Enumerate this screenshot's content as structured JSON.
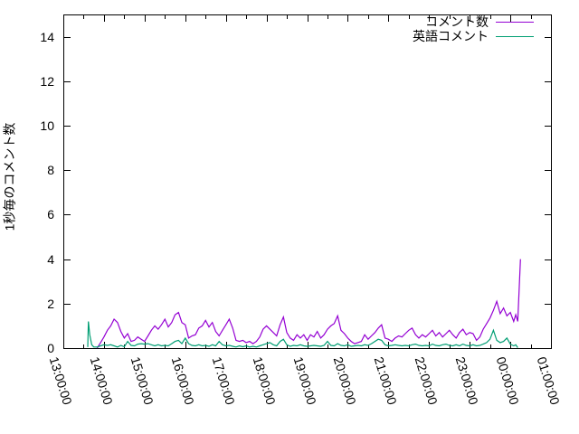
{
  "window": {
    "background": "#ffffff",
    "foreground": "#000000"
  },
  "chart_data": {
    "type": "line",
    "title": "",
    "xlabel": "",
    "ylabel": "1秒毎のコメント数",
    "grid": false,
    "legend_position": "top-right-inside",
    "ylim": [
      0,
      15
    ],
    "xlim_minutes_from_13_00": [
      0,
      720
    ],
    "yticks": [
      "0",
      "2",
      "4",
      "6",
      "8",
      "10",
      "12",
      "14"
    ],
    "ytick_values": [
      0,
      2,
      4,
      6,
      8,
      10,
      12,
      14
    ],
    "minor_xtick_interval_minutes": 30,
    "xticks": [
      {
        "minutes": 0,
        "label": "13:00:00"
      },
      {
        "minutes": 60,
        "label": "14:00:00"
      },
      {
        "minutes": 120,
        "label": "15:00:00"
      },
      {
        "minutes": 180,
        "label": "16:00:00"
      },
      {
        "minutes": 240,
        "label": "17:00:00"
      },
      {
        "minutes": 300,
        "label": "18:00:00"
      },
      {
        "minutes": 360,
        "label": "19:00:00"
      },
      {
        "minutes": 420,
        "label": "20:00:00"
      },
      {
        "minutes": 480,
        "label": "21:00:00"
      },
      {
        "minutes": 540,
        "label": "22:00:00"
      },
      {
        "minutes": 600,
        "label": "23:00:00"
      },
      {
        "minutes": 660,
        "label": "00:00:00"
      },
      {
        "minutes": 720,
        "label": "01:00:00"
      }
    ],
    "series": [
      {
        "name": "コメント数",
        "color": "#9400d3",
        "points": [
          [
            50,
            0
          ],
          [
            55,
            0.25
          ],
          [
            60,
            0.5
          ],
          [
            65,
            0.8
          ],
          [
            70,
            1.0
          ],
          [
            75,
            1.3
          ],
          [
            80,
            1.15
          ],
          [
            85,
            0.75
          ],
          [
            90,
            0.45
          ],
          [
            95,
            0.65
          ],
          [
            100,
            0.3
          ],
          [
            105,
            0.35
          ],
          [
            110,
            0.5
          ],
          [
            115,
            0.4
          ],
          [
            120,
            0.3
          ],
          [
            125,
            0.55
          ],
          [
            130,
            0.8
          ],
          [
            135,
            1.0
          ],
          [
            140,
            0.85
          ],
          [
            145,
            1.05
          ],
          [
            150,
            1.3
          ],
          [
            155,
            0.95
          ],
          [
            160,
            1.15
          ],
          [
            165,
            1.5
          ],
          [
            170,
            1.6
          ],
          [
            175,
            1.15
          ],
          [
            180,
            1.05
          ],
          [
            185,
            0.45
          ],
          [
            190,
            0.55
          ],
          [
            195,
            0.6
          ],
          [
            200,
            0.9
          ],
          [
            205,
            1.0
          ],
          [
            210,
            1.25
          ],
          [
            215,
            0.95
          ],
          [
            220,
            1.15
          ],
          [
            225,
            0.75
          ],
          [
            230,
            0.55
          ],
          [
            235,
            0.8
          ],
          [
            240,
            1.05
          ],
          [
            245,
            1.3
          ],
          [
            250,
            0.9
          ],
          [
            255,
            0.35
          ],
          [
            260,
            0.3
          ],
          [
            265,
            0.35
          ],
          [
            270,
            0.25
          ],
          [
            275,
            0.3
          ],
          [
            280,
            0.2
          ],
          [
            285,
            0.3
          ],
          [
            290,
            0.5
          ],
          [
            295,
            0.85
          ],
          [
            300,
            1.0
          ],
          [
            305,
            0.85
          ],
          [
            310,
            0.7
          ],
          [
            315,
            0.55
          ],
          [
            320,
            1.05
          ],
          [
            325,
            1.4
          ],
          [
            330,
            0.7
          ],
          [
            335,
            0.45
          ],
          [
            340,
            0.35
          ],
          [
            345,
            0.6
          ],
          [
            350,
            0.45
          ],
          [
            355,
            0.6
          ],
          [
            360,
            0.35
          ],
          [
            365,
            0.6
          ],
          [
            370,
            0.5
          ],
          [
            375,
            0.75
          ],
          [
            380,
            0.45
          ],
          [
            385,
            0.6
          ],
          [
            390,
            0.85
          ],
          [
            395,
            1.0
          ],
          [
            400,
            1.1
          ],
          [
            405,
            1.45
          ],
          [
            410,
            0.8
          ],
          [
            415,
            0.65
          ],
          [
            420,
            0.45
          ],
          [
            425,
            0.3
          ],
          [
            430,
            0.2
          ],
          [
            435,
            0.25
          ],
          [
            440,
            0.3
          ],
          [
            445,
            0.6
          ],
          [
            450,
            0.4
          ],
          [
            455,
            0.55
          ],
          [
            460,
            0.7
          ],
          [
            465,
            0.9
          ],
          [
            470,
            1.05
          ],
          [
            475,
            0.45
          ],
          [
            480,
            0.4
          ],
          [
            485,
            0.3
          ],
          [
            490,
            0.45
          ],
          [
            495,
            0.55
          ],
          [
            500,
            0.5
          ],
          [
            505,
            0.65
          ],
          [
            510,
            0.8
          ],
          [
            515,
            0.9
          ],
          [
            520,
            0.6
          ],
          [
            525,
            0.45
          ],
          [
            530,
            0.6
          ],
          [
            535,
            0.5
          ],
          [
            540,
            0.65
          ],
          [
            545,
            0.8
          ],
          [
            550,
            0.55
          ],
          [
            555,
            0.7
          ],
          [
            560,
            0.5
          ],
          [
            565,
            0.65
          ],
          [
            570,
            0.8
          ],
          [
            575,
            0.6
          ],
          [
            580,
            0.45
          ],
          [
            585,
            0.7
          ],
          [
            590,
            0.85
          ],
          [
            595,
            0.6
          ],
          [
            600,
            0.7
          ],
          [
            605,
            0.65
          ],
          [
            610,
            0.35
          ],
          [
            615,
            0.5
          ],
          [
            620,
            0.85
          ],
          [
            625,
            1.1
          ],
          [
            630,
            1.35
          ],
          [
            635,
            1.7
          ],
          [
            640,
            2.1
          ],
          [
            645,
            1.55
          ],
          [
            650,
            1.8
          ],
          [
            655,
            1.45
          ],
          [
            660,
            1.6
          ],
          [
            665,
            1.2
          ],
          [
            668,
            1.5
          ],
          [
            671,
            1.2
          ],
          [
            675,
            4.0
          ]
        ]
      },
      {
        "name": "英語コメント",
        "color": "#009e73",
        "points": [
          [
            36,
            0.05
          ],
          [
            37,
            1.2
          ],
          [
            39,
            0.6
          ],
          [
            42,
            0.15
          ],
          [
            45,
            0.05
          ],
          [
            50,
            0.05
          ],
          [
            55,
            0.1
          ],
          [
            60,
            0.15
          ],
          [
            65,
            0.12
          ],
          [
            70,
            0.15
          ],
          [
            75,
            0.1
          ],
          [
            80,
            0.05
          ],
          [
            85,
            0.12
          ],
          [
            90,
            0.06
          ],
          [
            95,
            0.3
          ],
          [
            100,
            0.12
          ],
          [
            105,
            0.1
          ],
          [
            110,
            0.18
          ],
          [
            115,
            0.2
          ],
          [
            120,
            0.18
          ],
          [
            125,
            0.2
          ],
          [
            130,
            0.15
          ],
          [
            135,
            0.1
          ],
          [
            140,
            0.15
          ],
          [
            145,
            0.1
          ],
          [
            150,
            0.12
          ],
          [
            155,
            0.1
          ],
          [
            160,
            0.2
          ],
          [
            165,
            0.3
          ],
          [
            170,
            0.35
          ],
          [
            175,
            0.2
          ],
          [
            180,
            0.45
          ],
          [
            185,
            0.2
          ],
          [
            190,
            0.12
          ],
          [
            195,
            0.1
          ],
          [
            200,
            0.15
          ],
          [
            205,
            0.1
          ],
          [
            210,
            0.12
          ],
          [
            215,
            0.08
          ],
          [
            220,
            0.15
          ],
          [
            225,
            0.1
          ],
          [
            230,
            0.3
          ],
          [
            235,
            0.15
          ],
          [
            240,
            0.1
          ],
          [
            245,
            0.12
          ],
          [
            250,
            0.08
          ],
          [
            255,
            0.05
          ],
          [
            260,
            0.1
          ],
          [
            265,
            0.06
          ],
          [
            270,
            0.1
          ],
          [
            275,
            0.05
          ],
          [
            280,
            0.08
          ],
          [
            285,
            0.05
          ],
          [
            290,
            0.1
          ],
          [
            295,
            0.15
          ],
          [
            300,
            0.2
          ],
          [
            305,
            0.25
          ],
          [
            310,
            0.15
          ],
          [
            315,
            0.1
          ],
          [
            320,
            0.3
          ],
          [
            325,
            0.4
          ],
          [
            330,
            0.15
          ],
          [
            335,
            0.08
          ],
          [
            340,
            0.12
          ],
          [
            345,
            0.1
          ],
          [
            350,
            0.15
          ],
          [
            355,
            0.1
          ],
          [
            360,
            0.08
          ],
          [
            365,
            0.1
          ],
          [
            370,
            0.12
          ],
          [
            375,
            0.1
          ],
          [
            380,
            0.08
          ],
          [
            385,
            0.12
          ],
          [
            390,
            0.3
          ],
          [
            395,
            0.12
          ],
          [
            400,
            0.1
          ],
          [
            405,
            0.2
          ],
          [
            410,
            0.12
          ],
          [
            415,
            0.1
          ],
          [
            420,
            0.15
          ],
          [
            425,
            0.08
          ],
          [
            430,
            0.1
          ],
          [
            435,
            0.12
          ],
          [
            440,
            0.1
          ],
          [
            445,
            0.15
          ],
          [
            450,
            0.12
          ],
          [
            455,
            0.2
          ],
          [
            460,
            0.3
          ],
          [
            465,
            0.4
          ],
          [
            470,
            0.35
          ],
          [
            475,
            0.15
          ],
          [
            480,
            0.1
          ],
          [
            485,
            0.12
          ],
          [
            490,
            0.15
          ],
          [
            495,
            0.12
          ],
          [
            500,
            0.1
          ],
          [
            505,
            0.12
          ],
          [
            510,
            0.1
          ],
          [
            515,
            0.15
          ],
          [
            520,
            0.18
          ],
          [
            525,
            0.12
          ],
          [
            530,
            0.1
          ],
          [
            535,
            0.12
          ],
          [
            540,
            0.1
          ],
          [
            545,
            0.18
          ],
          [
            550,
            0.12
          ],
          [
            555,
            0.1
          ],
          [
            560,
            0.15
          ],
          [
            565,
            0.18
          ],
          [
            570,
            0.12
          ],
          [
            575,
            0.1
          ],
          [
            580,
            0.15
          ],
          [
            585,
            0.1
          ],
          [
            590,
            0.18
          ],
          [
            595,
            0.12
          ],
          [
            600,
            0.1
          ],
          [
            605,
            0.15
          ],
          [
            610,
            0.1
          ],
          [
            615,
            0.12
          ],
          [
            620,
            0.18
          ],
          [
            625,
            0.25
          ],
          [
            630,
            0.4
          ],
          [
            635,
            0.8
          ],
          [
            640,
            0.35
          ],
          [
            645,
            0.25
          ],
          [
            650,
            0.3
          ],
          [
            655,
            0.45
          ],
          [
            660,
            0.18
          ],
          [
            665,
            0.1
          ],
          [
            668,
            0.15
          ],
          [
            671,
            0.02
          ]
        ]
      }
    ]
  }
}
